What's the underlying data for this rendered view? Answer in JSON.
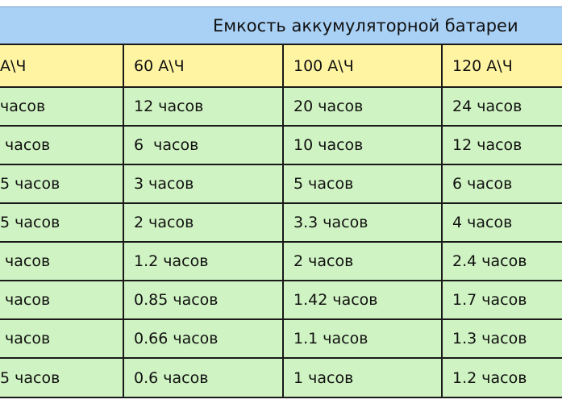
{
  "title": "Емкость аккумуляторной батареи",
  "headers": [
    "А\\Ч",
    "60 А\\Ч",
    "100 А\\Ч",
    "120 А\\Ч"
  ],
  "rows": [
    [
      "часов",
      "12 часов",
      "20 часов",
      "24 часов"
    ],
    [
      " часов",
      "6  часов",
      "10 часов",
      "12 часов"
    ],
    [
      "5 часов",
      "3 часов",
      "5 часов",
      "6 часов"
    ],
    [
      "5 часов",
      "2 часов",
      "3.3 часов",
      "4 часов"
    ],
    [
      " часов",
      "1.2 часов",
      "2 часов",
      "2.4 часов"
    ],
    [
      " часов",
      "0.85 часов",
      "1.42 часов",
      "1.7 часов"
    ],
    [
      " часов",
      "0.66 часов",
      "1.1 часов",
      "1.3 часов"
    ],
    [
      "5 часов",
      "0.6 часов",
      "1 часов",
      "1.2 часов"
    ]
  ],
  "colors": {
    "title_bg": "#a9d1f5",
    "header_bg": "#fff4a2",
    "cell_bg": "#cff3c2",
    "border": "#1a1a1a"
  }
}
